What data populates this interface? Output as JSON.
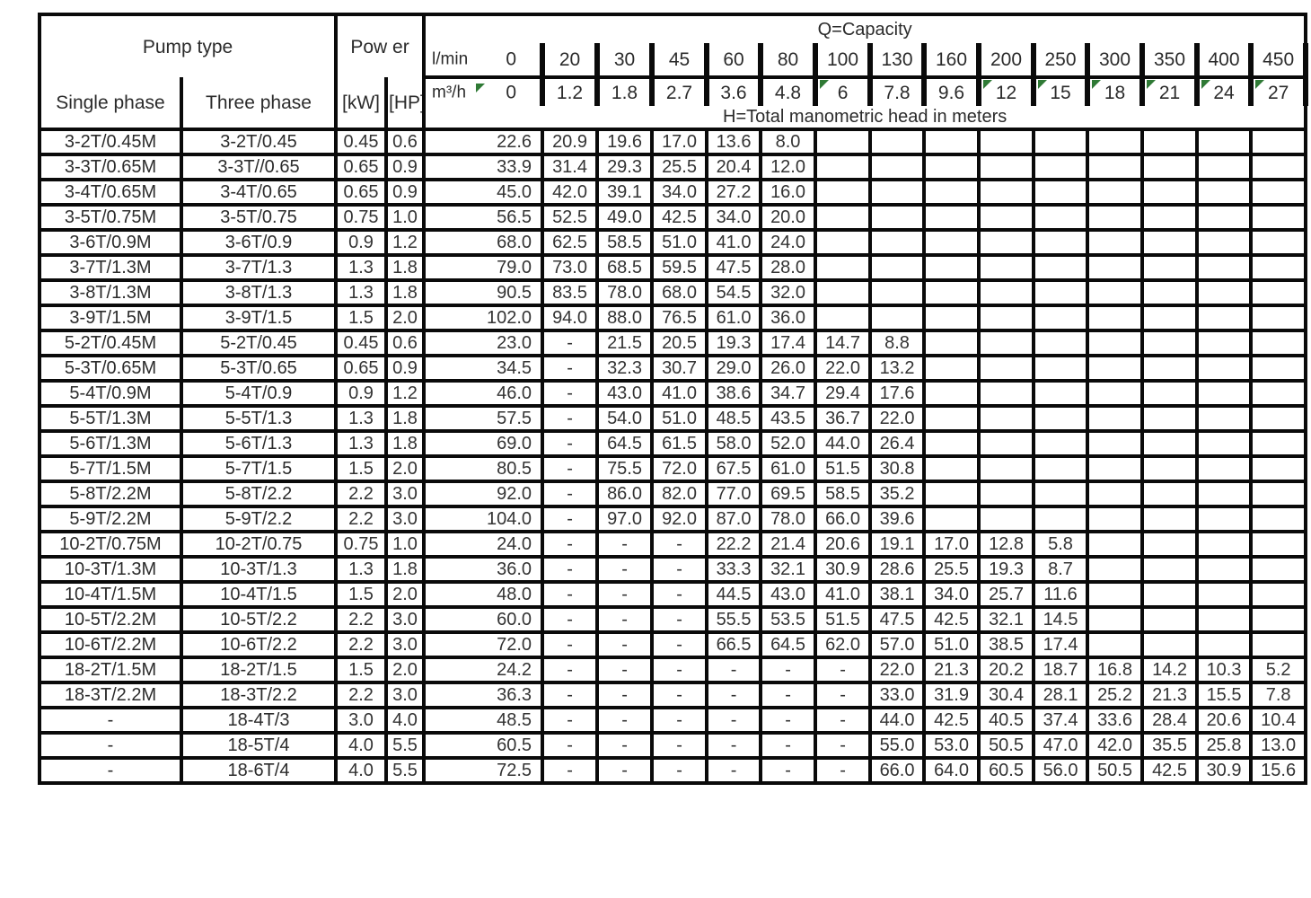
{
  "table": {
    "header": {
      "pump_type_label": "Pump type",
      "single_phase_label": "Single phase",
      "three_phase_label": "Three phase",
      "power_label": "Pow er",
      "kw_label": "[kW]",
      "hp_label": "[HP]",
      "capacity_label": "Q=Capacity",
      "lmin_label": "l/min",
      "m3h_label": "m³/h",
      "head_label": "H=Total manometric head in meters",
      "lmin_values": [
        "0",
        "20",
        "30",
        "45",
        "60",
        "80",
        "100",
        "130",
        "160",
        "200",
        "250",
        "300",
        "350",
        "400",
        "450"
      ],
      "m3h_values": [
        "0",
        "1.2",
        "1.8",
        "2.7",
        "3.6",
        "4.8",
        "6",
        "7.8",
        "9.6",
        "12",
        "15",
        "18",
        "21",
        "24",
        "27"
      ],
      "comment_marker_cols": [
        0,
        6,
        9,
        10,
        11,
        12,
        13,
        14
      ]
    },
    "colors": {
      "border": "#0a0a0a",
      "comment_marker_green": "#2f7a35",
      "text": "#2b2b2b"
    },
    "rows": [
      {
        "single": "3-2T/0.45M",
        "three": "3-2T/0.45",
        "kw": "0.45",
        "hp": "0.6",
        "values": [
          "22.6",
          "20.9",
          "19.6",
          "17.0",
          "13.6",
          "8.0",
          "",
          "",
          "",
          "",
          "",
          "",
          "",
          "",
          ""
        ]
      },
      {
        "single": "3-3T/0.65M",
        "three": "3-3T//0.65",
        "kw": "0.65",
        "hp": "0.9",
        "values": [
          "33.9",
          "31.4",
          "29.3",
          "25.5",
          "20.4",
          "12.0",
          "",
          "",
          "",
          "",
          "",
          "",
          "",
          "",
          ""
        ]
      },
      {
        "single": "3-4T/0.65M",
        "three": "3-4T/0.65",
        "kw": "0.65",
        "hp": "0.9",
        "values": [
          "45.0",
          "42.0",
          "39.1",
          "34.0",
          "27.2",
          "16.0",
          "",
          "",
          "",
          "",
          "",
          "",
          "",
          "",
          ""
        ]
      },
      {
        "single": "3-5T/0.75M",
        "three": "3-5T/0.75",
        "kw": "0.75",
        "hp": "1.0",
        "values": [
          "56.5",
          "52.5",
          "49.0",
          "42.5",
          "34.0",
          "20.0",
          "",
          "",
          "",
          "",
          "",
          "",
          "",
          "",
          ""
        ]
      },
      {
        "single": "3-6T/0.9M",
        "three": "3-6T/0.9",
        "kw": "0.9",
        "hp": "1.2",
        "values": [
          "68.0",
          "62.5",
          "58.5",
          "51.0",
          "41.0",
          "24.0",
          "",
          "",
          "",
          "",
          "",
          "",
          "",
          "",
          ""
        ]
      },
      {
        "single": "3-7T/1.3M",
        "three": "3-7T/1.3",
        "kw": "1.3",
        "hp": "1.8",
        "values": [
          "79.0",
          "73.0",
          "68.5",
          "59.5",
          "47.5",
          "28.0",
          "",
          "",
          "",
          "",
          "",
          "",
          "",
          "",
          ""
        ]
      },
      {
        "single": "3-8T/1.3M",
        "three": "3-8T/1.3",
        "kw": "1.3",
        "hp": "1.8",
        "values": [
          "90.5",
          "83.5",
          "78.0",
          "68.0",
          "54.5",
          "32.0",
          "",
          "",
          "",
          "",
          "",
          "",
          "",
          "",
          ""
        ]
      },
      {
        "single": "3-9T/1.5M",
        "three": "3-9T/1.5",
        "kw": "1.5",
        "hp": "2.0",
        "values": [
          "102.0",
          "94.0",
          "88.0",
          "76.5",
          "61.0",
          "36.0",
          "",
          "",
          "",
          "",
          "",
          "",
          "",
          "",
          ""
        ]
      },
      {
        "single": "5-2T/0.45M",
        "three": "5-2T/0.45",
        "kw": "0.45",
        "hp": "0.6",
        "values": [
          "23.0",
          "-",
          "21.5",
          "20.5",
          "19.3",
          "17.4",
          "14.7",
          "8.8",
          "",
          "",
          "",
          "",
          "",
          "",
          ""
        ]
      },
      {
        "single": "5-3T/0.65M",
        "three": "5-3T/0.65",
        "kw": "0.65",
        "hp": "0.9",
        "values": [
          "34.5",
          "-",
          "32.3",
          "30.7",
          "29.0",
          "26.0",
          "22.0",
          "13.2",
          "",
          "",
          "",
          "",
          "",
          "",
          ""
        ]
      },
      {
        "single": "5-4T/0.9M",
        "three": "5-4T/0.9",
        "kw": "0.9",
        "hp": "1.2",
        "values": [
          "46.0",
          "-",
          "43.0",
          "41.0",
          "38.6",
          "34.7",
          "29.4",
          "17.6",
          "",
          "",
          "",
          "",
          "",
          "",
          ""
        ]
      },
      {
        "single": "5-5T/1.3M",
        "three": "5-5T/1.3",
        "kw": "1.3",
        "hp": "1.8",
        "values": [
          "57.5",
          "-",
          "54.0",
          "51.0",
          "48.5",
          "43.5",
          "36.7",
          "22.0",
          "",
          "",
          "",
          "",
          "",
          "",
          ""
        ]
      },
      {
        "single": "5-6T/1.3M",
        "three": "5-6T/1.3",
        "kw": "1.3",
        "hp": "1.8",
        "values": [
          "69.0",
          "-",
          "64.5",
          "61.5",
          "58.0",
          "52.0",
          "44.0",
          "26.4",
          "",
          "",
          "",
          "",
          "",
          "",
          ""
        ]
      },
      {
        "single": "5-7T/1.5M",
        "three": "5-7T/1.5",
        "kw": "1.5",
        "hp": "2.0",
        "values": [
          "80.5",
          "-",
          "75.5",
          "72.0",
          "67.5",
          "61.0",
          "51.5",
          "30.8",
          "",
          "",
          "",
          "",
          "",
          "",
          ""
        ]
      },
      {
        "single": "5-8T/2.2M",
        "three": "5-8T/2.2",
        "kw": "2.2",
        "hp": "3.0",
        "values": [
          "92.0",
          "-",
          "86.0",
          "82.0",
          "77.0",
          "69.5",
          "58.5",
          "35.2",
          "",
          "",
          "",
          "",
          "",
          "",
          ""
        ]
      },
      {
        "single": "5-9T/2.2M",
        "three": "5-9T/2.2",
        "kw": "2.2",
        "hp": "3.0",
        "values": [
          "104.0",
          "-",
          "97.0",
          "92.0",
          "87.0",
          "78.0",
          "66.0",
          "39.6",
          "",
          "",
          "",
          "",
          "",
          "",
          ""
        ]
      },
      {
        "single": "10-2T/0.75M",
        "three": "10-2T/0.75",
        "kw": "0.75",
        "hp": "1.0",
        "values": [
          "24.0",
          "-",
          "-",
          "-",
          "22.2",
          "21.4",
          "20.6",
          "19.1",
          "17.0",
          "12.8",
          "5.8",
          "",
          "",
          "",
          ""
        ]
      },
      {
        "single": "10-3T/1.3M",
        "three": "10-3T/1.3",
        "kw": "1.3",
        "hp": "1.8",
        "values": [
          "36.0",
          "-",
          "-",
          "-",
          "33.3",
          "32.1",
          "30.9",
          "28.6",
          "25.5",
          "19.3",
          "8.7",
          "",
          "",
          "",
          ""
        ]
      },
      {
        "single": "10-4T/1.5M",
        "three": "10-4T/1.5",
        "kw": "1.5",
        "hp": "2.0",
        "values": [
          "48.0",
          "-",
          "-",
          "-",
          "44.5",
          "43.0",
          "41.0",
          "38.1",
          "34.0",
          "25.7",
          "11.6",
          "",
          "",
          "",
          ""
        ]
      },
      {
        "single": "10-5T/2.2M",
        "three": "10-5T/2.2",
        "kw": "2.2",
        "hp": "3.0",
        "values": [
          "60.0",
          "-",
          "-",
          "-",
          "55.5",
          "53.5",
          "51.5",
          "47.5",
          "42.5",
          "32.1",
          "14.5",
          "",
          "",
          "",
          ""
        ]
      },
      {
        "single": "10-6T/2.2M",
        "three": "10-6T/2.2",
        "kw": "2.2",
        "hp": "3.0",
        "values": [
          "72.0",
          "-",
          "-",
          "-",
          "66.5",
          "64.5",
          "62.0",
          "57.0",
          "51.0",
          "38.5",
          "17.4",
          "",
          "",
          "",
          ""
        ]
      },
      {
        "single": "18-2T/1.5M",
        "three": "18-2T/1.5",
        "kw": "1.5",
        "hp": "2.0",
        "values": [
          "24.2",
          "-",
          "-",
          "-",
          "-",
          "-",
          "-",
          "22.0",
          "21.3",
          "20.2",
          "18.7",
          "16.8",
          "14.2",
          "10.3",
          "5.2"
        ]
      },
      {
        "single": "18-3T/2.2M",
        "three": "18-3T/2.2",
        "kw": "2.2",
        "hp": "3.0",
        "values": [
          "36.3",
          "-",
          "-",
          "-",
          "-",
          "-",
          "-",
          "33.0",
          "31.9",
          "30.4",
          "28.1",
          "25.2",
          "21.3",
          "15.5",
          "7.8"
        ]
      },
      {
        "single": "-",
        "three": "18-4T/3",
        "kw": "3.0",
        "hp": "4.0",
        "values": [
          "48.5",
          "-",
          "-",
          "-",
          "-",
          "-",
          "-",
          "44.0",
          "42.5",
          "40.5",
          "37.4",
          "33.6",
          "28.4",
          "20.6",
          "10.4"
        ]
      },
      {
        "single": "-",
        "three": "18-5T/4",
        "kw": "4.0",
        "hp": "5.5",
        "values": [
          "60.5",
          "-",
          "-",
          "-",
          "-",
          "-",
          "-",
          "55.0",
          "53.0",
          "50.5",
          "47.0",
          "42.0",
          "35.5",
          "25.8",
          "13.0"
        ]
      },
      {
        "single": "-",
        "three": "18-6T/4",
        "kw": "4.0",
        "hp": "5.5",
        "values": [
          "72.5",
          "-",
          "-",
          "-",
          "-",
          "-",
          "-",
          "66.0",
          "64.0",
          "60.5",
          "56.0",
          "50.5",
          "42.5",
          "30.9",
          "15.6"
        ]
      }
    ]
  }
}
